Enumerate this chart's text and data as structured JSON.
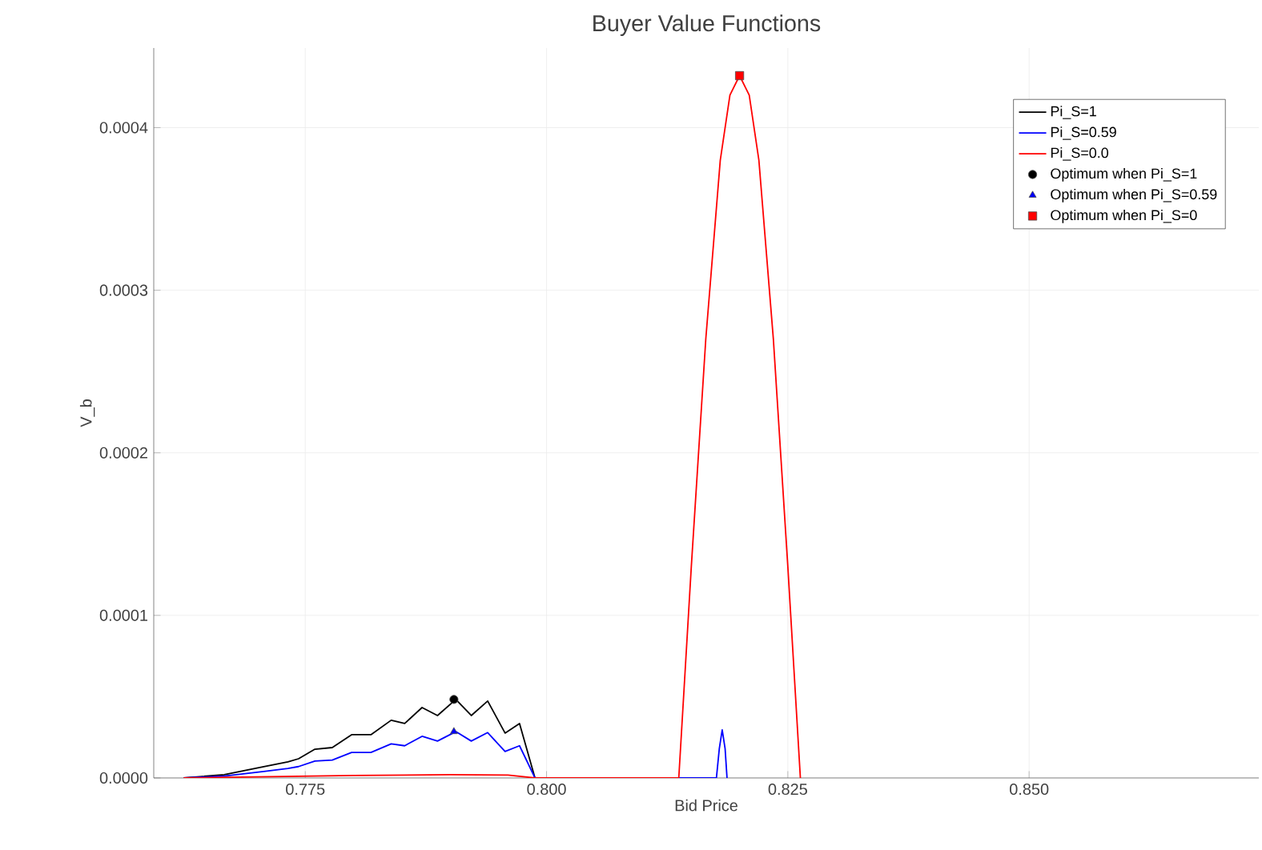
{
  "chart_data": {
    "type": "line",
    "title": "Buyer Value Functions",
    "xlabel": "Bid Price",
    "ylabel": "V_b",
    "xlim": [
      0.7593,
      0.8738
    ],
    "ylim": [
      0,
      0.000449
    ],
    "xticks": [
      0.775,
      {
        "value": 0.8,
        "label": "0.800"
      },
      0.825,
      {
        "value": 0.85,
        "label": "0.850"
      }
    ],
    "yticks": [
      {
        "value": 0,
        "label": "0.0000"
      },
      {
        "value": 0.0001,
        "label": "0.0001"
      },
      {
        "value": 0.0002,
        "label": "0.0002"
      },
      {
        "value": 0.0003,
        "label": "0.0003"
      },
      {
        "value": 0.0004,
        "label": "0.0004"
      }
    ],
    "grid": true,
    "legend": "top right",
    "series": [
      {
        "name": "Pi_S=1",
        "color": "#000000",
        "x": [
          0.7624,
          0.7666,
          0.7707,
          0.7732,
          0.7743,
          0.776,
          0.7778,
          0.7798,
          0.7818,
          0.7839,
          0.7853,
          0.7871,
          0.7887,
          0.7906,
          0.7922,
          0.7939,
          0.7957,
          0.7972,
          0.7988
        ],
        "values": [
          0,
          2e-06,
          6.9e-06,
          9.9e-06,
          1.18e-05,
          1.77e-05,
          1.87e-05,
          2.66e-05,
          2.66e-05,
          3.55e-05,
          3.35e-05,
          4.33e-05,
          3.84e-05,
          4.83e-05,
          3.84e-05,
          4.73e-05,
          2.76e-05,
          3.35e-05,
          0
        ]
      },
      {
        "name": "Pi_S=0.59",
        "color": "#0000ff",
        "x": [
          0.7624,
          0.7666,
          0.7707,
          0.7732,
          0.7743,
          0.776,
          0.7778,
          0.7798,
          0.7818,
          0.7839,
          0.7853,
          0.7871,
          0.7887,
          0.7906,
          0.7922,
          0.7939,
          0.7957,
          0.7972,
          0.7988,
          0.8176,
          0.8179,
          0.8182,
          0.8185,
          0.8187
        ],
        "values": [
          0,
          1.2e-06,
          4e-06,
          5.8e-06,
          7e-06,
          1.04e-05,
          1.1e-05,
          1.57e-05,
          1.57e-05,
          2.1e-05,
          1.98e-05,
          2.56e-05,
          2.27e-05,
          2.85e-05,
          2.27e-05,
          2.79e-05,
          1.63e-05,
          1.98e-05,
          0,
          0,
          1.8e-05,
          2.96e-05,
          1.8e-05,
          0
        ]
      },
      {
        "name": "Pi_S=0.0",
        "color": "#ff0000",
        "x": [
          0.7624,
          0.77,
          0.78,
          0.79,
          0.796,
          0.7988,
          0.8137,
          0.815,
          0.8165,
          0.818,
          0.819,
          0.82,
          0.821,
          0.822,
          0.8235,
          0.825,
          0.8263
        ],
        "values": [
          0,
          7e-07,
          1.5e-06,
          2e-06,
          1.8e-06,
          0,
          0,
          0.00013,
          0.00027,
          0.00038,
          0.00042,
          0.000432,
          0.00042,
          0.00038,
          0.00027,
          0.00013,
          0
        ]
      },
      {
        "name": "Optimum when Pi_S=1",
        "type": "scatter",
        "marker": "circle",
        "color": "#000000",
        "x": [
          0.7904
        ],
        "values": [
          4.83e-05
        ]
      },
      {
        "name": "Optimum when Pi_S=0.59",
        "type": "scatter",
        "marker": "triangle",
        "color": "#0000ff",
        "x": [
          0.7904
        ],
        "values": [
          2.85e-05
        ]
      },
      {
        "name": "Optimum when Pi_S=0",
        "type": "scatter",
        "marker": "square",
        "color": "#ff0000",
        "x": [
          0.82
        ],
        "values": [
          0.000432
        ]
      }
    ]
  }
}
